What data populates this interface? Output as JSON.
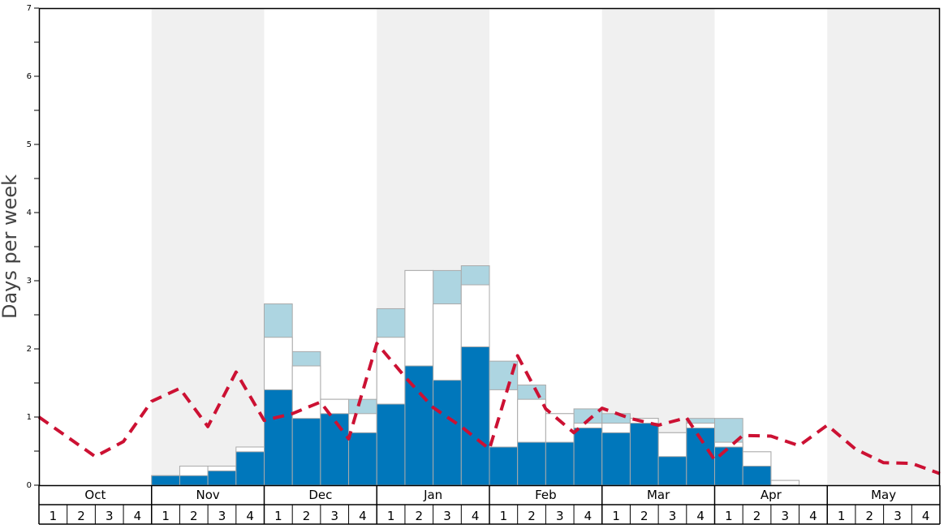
{
  "chart_data": {
    "type": "bar",
    "ylabel": "Days per week",
    "ylim": [
      0,
      7
    ],
    "y_ticks": [
      "0",
      "1",
      "2",
      "3",
      "4",
      "5",
      "6",
      "7"
    ],
    "months": [
      "Oct",
      "Nov",
      "Dec",
      "Jan",
      "Feb",
      "Mar",
      "Apr",
      "May"
    ],
    "week_labels": [
      "1",
      "2",
      "3",
      "4"
    ],
    "shaded_months": [
      "Nov",
      "Jan",
      "Mar",
      "May"
    ],
    "colors": {
      "dark_bar": "#0077bb",
      "white_bar": "#ffffff",
      "light_bar": "#add5e1",
      "bar_edge": "#aaaaaa",
      "shade": "#f0f0f0",
      "line": "#cc1133"
    },
    "bars": {
      "dark": [
        0,
        0,
        0,
        0,
        0.14,
        0.14,
        0.21,
        0.49,
        1.4,
        0.98,
        1.05,
        0.77,
        1.19,
        1.75,
        1.54,
        2.03,
        0.56,
        0.63,
        0.63,
        0.84,
        0.77,
        0.91,
        0.42,
        0.84,
        0.56,
        0.28,
        0,
        0,
        0,
        0,
        0,
        0
      ],
      "white": [
        0,
        0,
        0,
        0,
        0.14,
        0.28,
        0.28,
        0.56,
        2.17,
        1.75,
        1.26,
        1.05,
        2.17,
        3.15,
        2.66,
        2.94,
        1.4,
        1.26,
        1.05,
        0.91,
        0.91,
        0.98,
        0.77,
        0.91,
        0.63,
        0.49,
        0.07,
        0,
        0,
        0,
        0,
        0
      ],
      "light": [
        0,
        0,
        0,
        0,
        0,
        0,
        0,
        0,
        2.66,
        1.96,
        1.26,
        1.26,
        2.59,
        3.15,
        3.15,
        3.22,
        1.82,
        1.47,
        1.05,
        1.12,
        1.05,
        0.98,
        0.77,
        0.98,
        0.98,
        0.49,
        0.07,
        0,
        0,
        0,
        0,
        0
      ]
    },
    "line_values": [
      1.0,
      0.71,
      0.42,
      0.64,
      1.23,
      1.42,
      0.86,
      1.66,
      0.95,
      1.05,
      1.22,
      0.68,
      2.08,
      1.59,
      1.14,
      0.86,
      0.53,
      1.9,
      1.12,
      0.77,
      1.13,
      0.98,
      0.88,
      0.99,
      0.37,
      0.73,
      0.72,
      0.58,
      0.88,
      0.53,
      0.33,
      0.32,
      0.17
    ]
  }
}
